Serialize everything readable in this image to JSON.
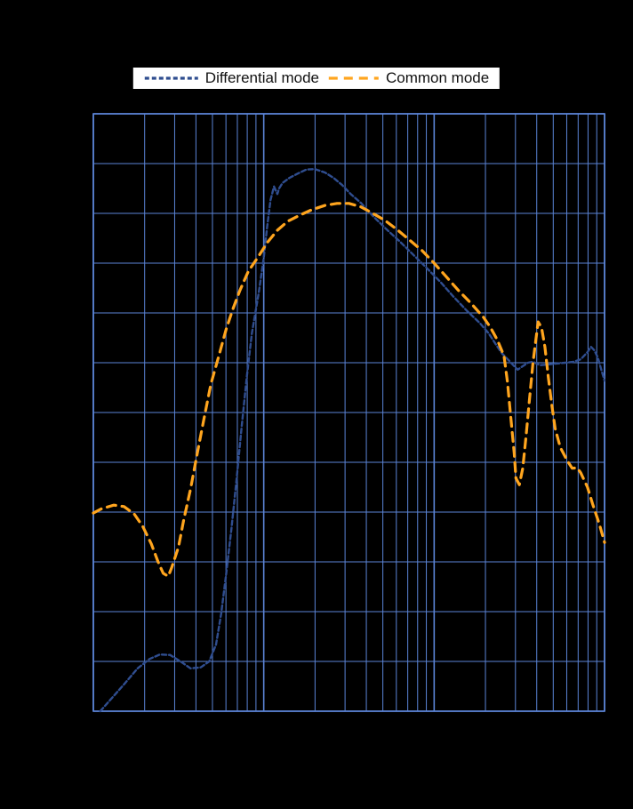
{
  "colors": {
    "background": "#000000",
    "plot_background": "#000000",
    "grid": "#5b84d6",
    "legend_background": "#ffffff",
    "legend_text": "#111111",
    "differential_mode": "#2f4d8f",
    "common_mode": "#ffa51e"
  },
  "legend": {
    "position": "top-center"
  },
  "chart_data": {
    "type": "line",
    "grid": true,
    "legend_position": "top",
    "x_axis": {
      "scale": "log",
      "decades": 3,
      "range": [
        0,
        3
      ],
      "unit": "decades (axis tick labels not visible in screenshot)",
      "tick_labels_visible": false
    },
    "y_axis": {
      "scale": "linear",
      "divisions": 12,
      "range": [
        0,
        12
      ],
      "unit": "grid divisions (axis tick labels not visible in screenshot)",
      "tick_labels_visible": false
    },
    "series": [
      {
        "name": "Differential mode",
        "color": "#2f4d8f",
        "dash": "5 3",
        "width": 2.4,
        "points": [
          [
            0.04,
            0.0
          ],
          [
            0.1,
            0.23
          ],
          [
            0.18,
            0.54
          ],
          [
            0.26,
            0.86
          ],
          [
            0.33,
            1.05
          ],
          [
            0.39,
            1.14
          ],
          [
            0.45,
            1.13
          ],
          [
            0.52,
            0.98
          ],
          [
            0.57,
            0.86
          ],
          [
            0.63,
            0.88
          ],
          [
            0.68,
            1.0
          ],
          [
            0.72,
            1.34
          ],
          [
            0.75,
            1.96
          ],
          [
            0.78,
            2.77
          ],
          [
            0.81,
            3.66
          ],
          [
            0.84,
            4.64
          ],
          [
            0.87,
            5.71
          ],
          [
            0.9,
            6.7
          ],
          [
            0.93,
            7.59
          ],
          [
            0.97,
            8.39
          ],
          [
            1.0,
            9.11
          ],
          [
            1.02,
            9.73
          ],
          [
            1.04,
            10.27
          ],
          [
            1.06,
            10.54
          ],
          [
            1.08,
            10.39
          ],
          [
            1.09,
            10.5
          ],
          [
            1.11,
            10.61
          ],
          [
            1.15,
            10.71
          ],
          [
            1.2,
            10.8
          ],
          [
            1.25,
            10.88
          ],
          [
            1.3,
            10.89
          ],
          [
            1.36,
            10.82
          ],
          [
            1.41,
            10.71
          ],
          [
            1.46,
            10.57
          ],
          [
            1.51,
            10.39
          ],
          [
            1.57,
            10.21
          ],
          [
            1.64,
            9.95
          ],
          [
            1.72,
            9.68
          ],
          [
            1.8,
            9.43
          ],
          [
            1.88,
            9.16
          ],
          [
            1.96,
            8.89
          ],
          [
            2.04,
            8.61
          ],
          [
            2.11,
            8.34
          ],
          [
            2.19,
            8.05
          ],
          [
            2.27,
            7.79
          ],
          [
            2.32,
            7.59
          ],
          [
            2.36,
            7.38
          ],
          [
            2.4,
            7.18
          ],
          [
            2.44,
            7.04
          ],
          [
            2.47,
            6.93
          ],
          [
            2.49,
            6.86
          ],
          [
            2.52,
            6.93
          ],
          [
            2.55,
            7.0
          ],
          [
            2.58,
            7.02
          ],
          [
            2.62,
            6.95
          ],
          [
            2.66,
            6.96
          ],
          [
            2.71,
            6.98
          ],
          [
            2.77,
            7.0
          ],
          [
            2.82,
            7.02
          ],
          [
            2.86,
            7.07
          ],
          [
            2.9,
            7.21
          ],
          [
            2.92,
            7.32
          ],
          [
            2.94,
            7.25
          ],
          [
            2.96,
            7.11
          ],
          [
            2.98,
            6.87
          ],
          [
            3.0,
            6.64
          ]
        ]
      },
      {
        "name": "Common mode",
        "color": "#ffa51e",
        "dash": "10 7",
        "width": 3.2,
        "points": [
          [
            0.0,
            3.98
          ],
          [
            0.05,
            4.07
          ],
          [
            0.12,
            4.14
          ],
          [
            0.18,
            4.11
          ],
          [
            0.24,
            3.96
          ],
          [
            0.29,
            3.71
          ],
          [
            0.34,
            3.36
          ],
          [
            0.38,
            3.0
          ],
          [
            0.41,
            2.77
          ],
          [
            0.44,
            2.71
          ],
          [
            0.46,
            2.89
          ],
          [
            0.5,
            3.3
          ],
          [
            0.53,
            3.84
          ],
          [
            0.57,
            4.46
          ],
          [
            0.61,
            5.18
          ],
          [
            0.65,
            5.89
          ],
          [
            0.69,
            6.57
          ],
          [
            0.74,
            7.18
          ],
          [
            0.78,
            7.68
          ],
          [
            0.82,
            8.09
          ],
          [
            0.86,
            8.45
          ],
          [
            0.91,
            8.84
          ],
          [
            0.97,
            9.14
          ],
          [
            1.02,
            9.41
          ],
          [
            1.08,
            9.66
          ],
          [
            1.14,
            9.84
          ],
          [
            1.21,
            9.96
          ],
          [
            1.28,
            10.07
          ],
          [
            1.36,
            10.16
          ],
          [
            1.43,
            10.2
          ],
          [
            1.5,
            10.2
          ],
          [
            1.57,
            10.13
          ],
          [
            1.63,
            10.02
          ],
          [
            1.71,
            9.86
          ],
          [
            1.78,
            9.68
          ],
          [
            1.85,
            9.48
          ],
          [
            1.93,
            9.25
          ],
          [
            2.0,
            9.0
          ],
          [
            2.07,
            8.73
          ],
          [
            2.14,
            8.46
          ],
          [
            2.22,
            8.18
          ],
          [
            2.29,
            7.91
          ],
          [
            2.33,
            7.71
          ],
          [
            2.37,
            7.46
          ],
          [
            2.41,
            7.14
          ],
          [
            2.43,
            6.61
          ],
          [
            2.45,
            5.89
          ],
          [
            2.47,
            5.18
          ],
          [
            2.48,
            4.68
          ],
          [
            2.5,
            4.55
          ],
          [
            2.52,
            4.88
          ],
          [
            2.54,
            5.54
          ],
          [
            2.56,
            6.29
          ],
          [
            2.58,
            7.0
          ],
          [
            2.6,
            7.54
          ],
          [
            2.61,
            7.82
          ],
          [
            2.63,
            7.71
          ],
          [
            2.65,
            7.32
          ],
          [
            2.67,
            6.7
          ],
          [
            2.69,
            6.16
          ],
          [
            2.71,
            5.68
          ],
          [
            2.74,
            5.3
          ],
          [
            2.78,
            5.04
          ],
          [
            2.81,
            4.88
          ],
          [
            2.84,
            4.89
          ],
          [
            2.86,
            4.79
          ],
          [
            2.9,
            4.5
          ],
          [
            2.93,
            4.16
          ],
          [
            2.97,
            3.75
          ],
          [
            3.0,
            3.39
          ]
        ]
      }
    ]
  }
}
